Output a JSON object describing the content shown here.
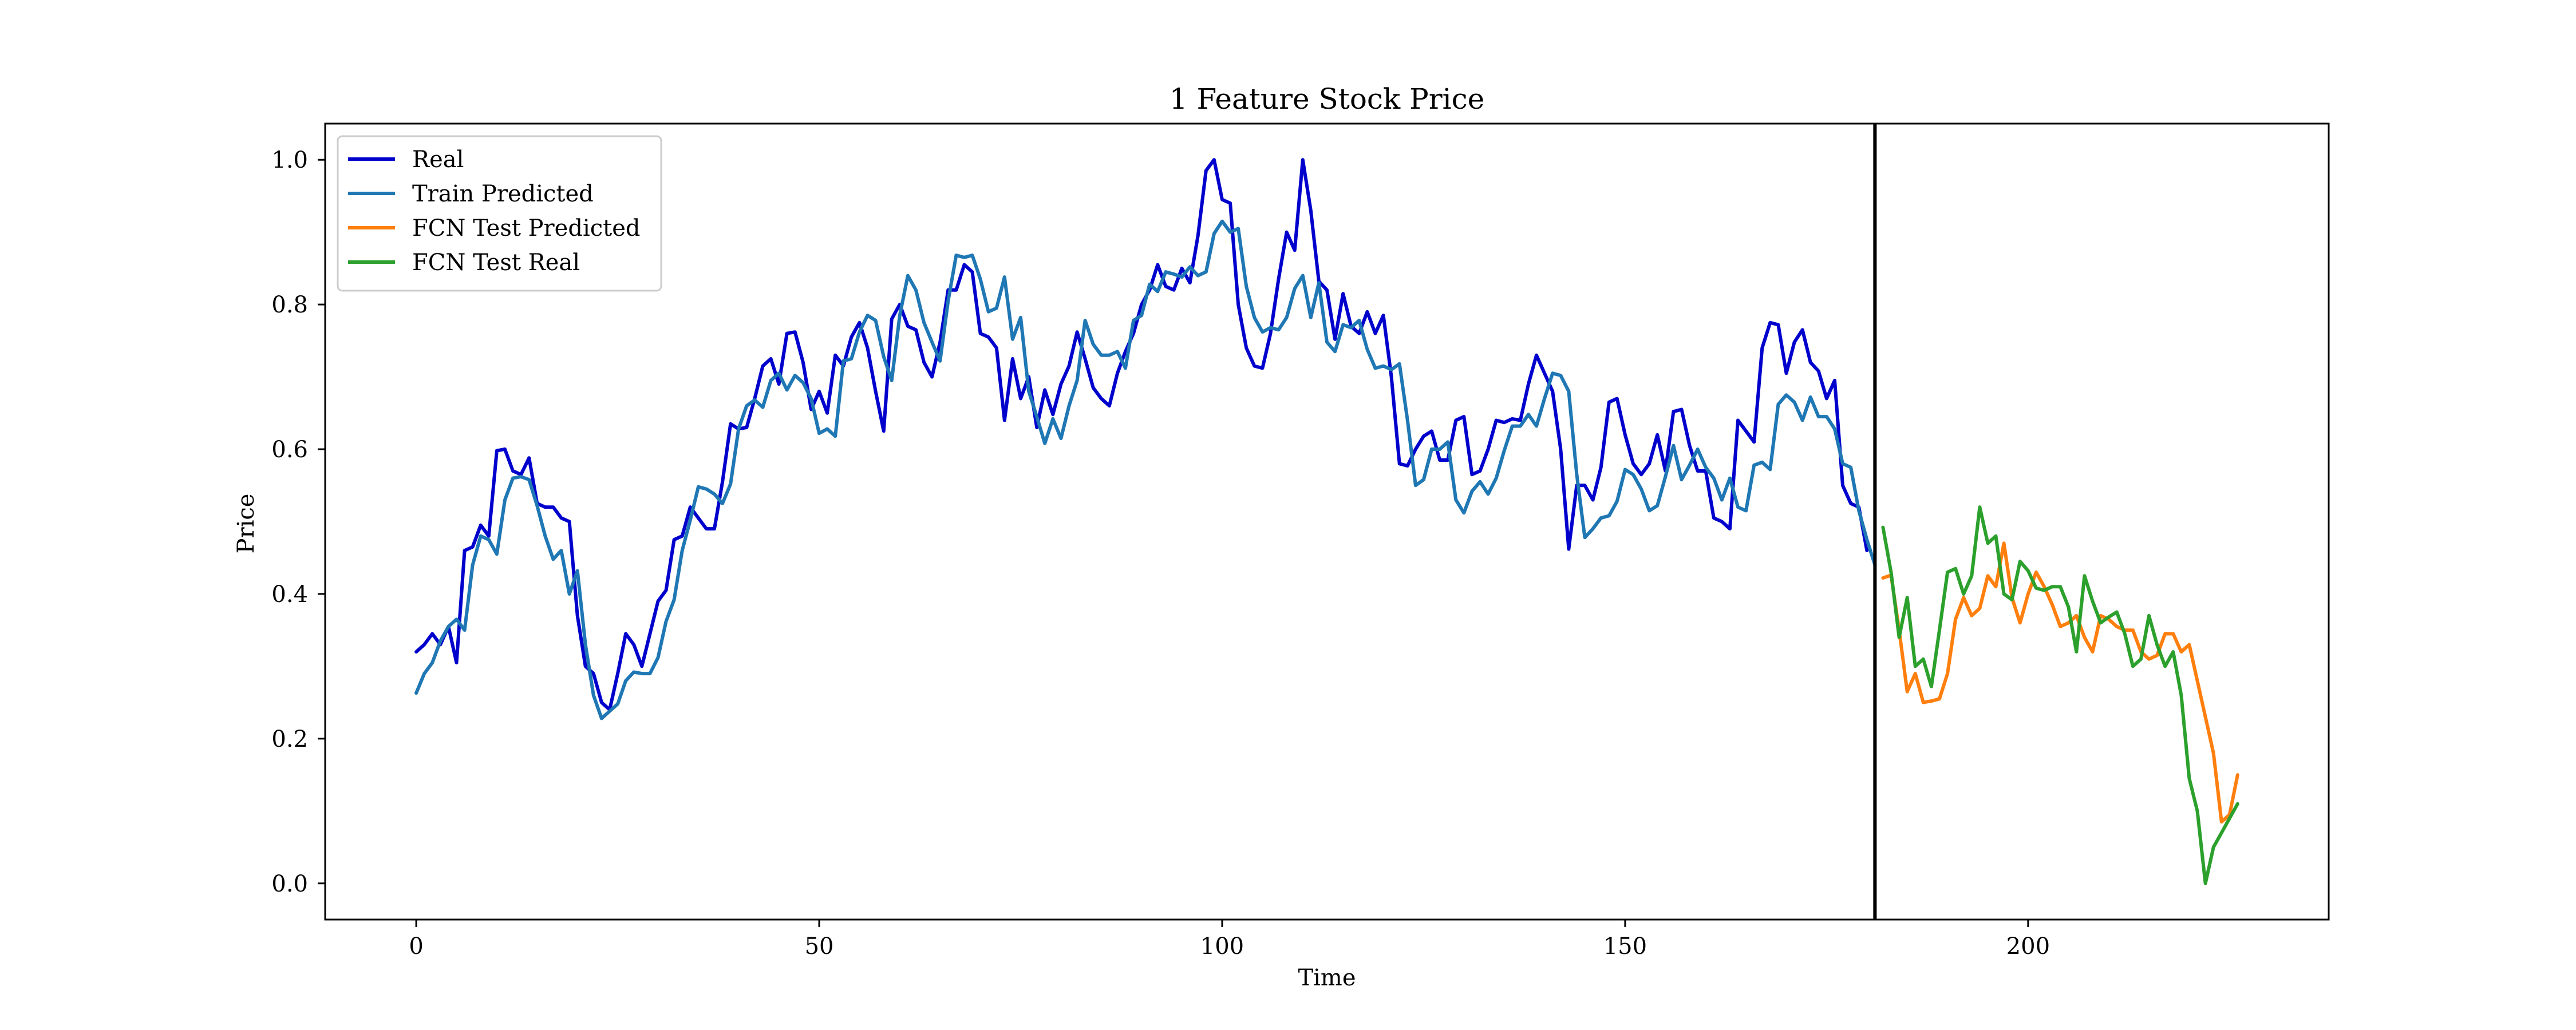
{
  "chart_data": {
    "type": "line",
    "title": "1 Feature Stock Price",
    "xlabel": "Time",
    "ylabel": "Price",
    "xlim": [
      -11.3,
      237.3
    ],
    "ylim": [
      -0.05,
      1.05
    ],
    "xticks": [
      0,
      50,
      100,
      150,
      200
    ],
    "yticks": [
      0.0,
      0.2,
      0.4,
      0.6,
      0.8,
      1.0
    ],
    "ytick_labels": [
      "0.0",
      "0.2",
      "0.4",
      "0.6",
      "0.8",
      "1.0"
    ],
    "grid": false,
    "legend": {
      "position": "top-left"
    },
    "vline": {
      "x": 181,
      "color": "#000000"
    },
    "series": [
      {
        "name": "Real",
        "color": "#0000cd",
        "x_start": 0,
        "values": [
          0.32,
          0.33,
          0.345,
          0.33,
          0.355,
          0.305,
          0.46,
          0.465,
          0.495,
          0.48,
          0.598,
          0.6,
          0.57,
          0.565,
          0.588,
          0.525,
          0.52,
          0.52,
          0.505,
          0.5,
          0.37,
          0.3,
          0.29,
          0.25,
          0.24,
          0.29,
          0.345,
          0.33,
          0.3,
          0.345,
          0.39,
          0.405,
          0.475,
          0.48,
          0.52,
          0.505,
          0.49,
          0.49,
          0.555,
          0.635,
          0.628,
          0.63,
          0.67,
          0.715,
          0.725,
          0.69,
          0.76,
          0.762,
          0.72,
          0.655,
          0.68,
          0.65,
          0.73,
          0.715,
          0.755,
          0.775,
          0.74,
          0.68,
          0.625,
          0.78,
          0.8,
          0.77,
          0.765,
          0.72,
          0.7,
          0.748,
          0.82,
          0.82,
          0.855,
          0.845,
          0.76,
          0.755,
          0.74,
          0.64,
          0.725,
          0.67,
          0.7,
          0.63,
          0.682,
          0.648,
          0.69,
          0.715,
          0.762,
          0.725,
          0.685,
          0.67,
          0.66,
          0.705,
          0.735,
          0.76,
          0.8,
          0.82,
          0.855,
          0.825,
          0.82,
          0.85,
          0.83,
          0.895,
          0.985,
          1.0,
          0.945,
          0.94,
          0.8,
          0.74,
          0.715,
          0.712,
          0.76,
          0.835,
          0.9,
          0.875,
          1.0,
          0.93,
          0.832,
          0.82,
          0.752,
          0.815,
          0.77,
          0.76,
          0.79,
          0.76,
          0.785,
          0.7,
          0.58,
          0.577,
          0.6,
          0.618,
          0.625,
          0.585,
          0.585,
          0.64,
          0.645,
          0.565,
          0.57,
          0.6,
          0.64,
          0.637,
          0.642,
          0.64,
          0.69,
          0.73,
          0.705,
          0.68,
          0.6,
          0.462,
          0.55,
          0.55,
          0.53,
          0.575,
          0.665,
          0.67,
          0.62,
          0.58,
          0.565,
          0.58,
          0.62,
          0.57,
          0.652,
          0.655,
          0.605,
          0.57,
          0.57,
          0.505,
          0.5,
          0.49,
          0.64,
          0.625,
          0.61,
          0.74,
          0.775,
          0.772,
          0.705,
          0.748,
          0.765,
          0.72,
          0.708,
          0.67,
          0.695,
          0.55,
          0.525,
          0.52,
          0.46
        ]
      },
      {
        "name": "Train Predicted",
        "color": "#1f77b4",
        "x_start": 0,
        "values": [
          0.263,
          0.29,
          0.305,
          0.335,
          0.355,
          0.365,
          0.35,
          0.44,
          0.48,
          0.475,
          0.455,
          0.53,
          0.56,
          0.562,
          0.558,
          0.522,
          0.48,
          0.448,
          0.46,
          0.4,
          0.432,
          0.33,
          0.26,
          0.228,
          0.238,
          0.248,
          0.28,
          0.292,
          0.29,
          0.29,
          0.312,
          0.362,
          0.392,
          0.46,
          0.502,
          0.548,
          0.545,
          0.538,
          0.525,
          0.552,
          0.628,
          0.66,
          0.668,
          0.658,
          0.695,
          0.705,
          0.682,
          0.702,
          0.692,
          0.67,
          0.622,
          0.628,
          0.618,
          0.722,
          0.725,
          0.762,
          0.785,
          0.778,
          0.728,
          0.695,
          0.785,
          0.84,
          0.82,
          0.775,
          0.748,
          0.722,
          0.805,
          0.868,
          0.865,
          0.868,
          0.835,
          0.79,
          0.795,
          0.838,
          0.752,
          0.782,
          0.68,
          0.645,
          0.608,
          0.642,
          0.615,
          0.66,
          0.695,
          0.778,
          0.745,
          0.73,
          0.73,
          0.735,
          0.712,
          0.778,
          0.785,
          0.828,
          0.818,
          0.845,
          0.842,
          0.838,
          0.852,
          0.84,
          0.845,
          0.898,
          0.915,
          0.9,
          0.905,
          0.825,
          0.782,
          0.762,
          0.768,
          0.765,
          0.782,
          0.822,
          0.84,
          0.782,
          0.83,
          0.748,
          0.735,
          0.772,
          0.768,
          0.778,
          0.738,
          0.712,
          0.715,
          0.71,
          0.718,
          0.64,
          0.55,
          0.558,
          0.6,
          0.6,
          0.61,
          0.53,
          0.512,
          0.542,
          0.555,
          0.538,
          0.56,
          0.598,
          0.632,
          0.632,
          0.648,
          0.632,
          0.67,
          0.705,
          0.702,
          0.68,
          0.565,
          0.478,
          0.49,
          0.505,
          0.508,
          0.528,
          0.572,
          0.565,
          0.545,
          0.515,
          0.522,
          0.562,
          0.605,
          0.558,
          0.578,
          0.6,
          0.575,
          0.56,
          0.53,
          0.56,
          0.52,
          0.515,
          0.578,
          0.582,
          0.572,
          0.662,
          0.675,
          0.665,
          0.64,
          0.672,
          0.645,
          0.645,
          0.628,
          0.58,
          0.575,
          0.515,
          0.475,
          0.44
        ]
      },
      {
        "name": "FCN Test Predicted",
        "color": "#ff7f0e",
        "x_start": 182,
        "values": [
          0.422,
          0.426,
          0.35,
          0.265,
          0.29,
          0.25,
          0.252,
          0.255,
          0.29,
          0.365,
          0.395,
          0.37,
          0.38,
          0.425,
          0.41,
          0.47,
          0.395,
          0.36,
          0.4,
          0.43,
          0.41,
          0.385,
          0.355,
          0.36,
          0.37,
          0.34,
          0.32,
          0.37,
          0.365,
          0.355,
          0.35,
          0.35,
          0.32,
          0.31,
          0.315,
          0.345,
          0.345,
          0.32,
          0.33,
          0.28,
          0.23,
          0.18,
          0.085,
          0.095,
          0.15
        ]
      },
      {
        "name": "FCN Test Real",
        "color": "#2ca02c",
        "x_start": 182,
        "values": [
          0.492,
          0.43,
          0.34,
          0.395,
          0.3,
          0.31,
          0.272,
          0.35,
          0.43,
          0.435,
          0.4,
          0.425,
          0.52,
          0.47,
          0.48,
          0.4,
          0.392,
          0.445,
          0.432,
          0.408,
          0.405,
          0.41,
          0.41,
          0.382,
          0.32,
          0.425,
          0.39,
          0.36,
          0.368,
          0.375,
          0.345,
          0.3,
          0.31,
          0.37,
          0.33,
          0.3,
          0.32,
          0.26,
          0.145,
          0.1,
          0.0,
          0.05,
          0.07,
          0.09,
          0.11
        ]
      }
    ]
  }
}
